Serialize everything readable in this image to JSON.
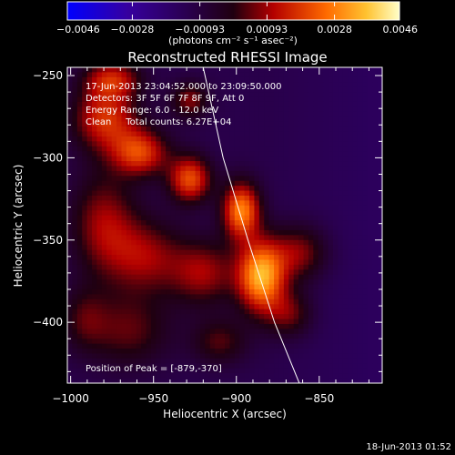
{
  "chart_data": {
    "type": "heatmap",
    "title": "Reconstructed RHESSI Image",
    "xlabel": "Heliocentric X (arcsec)",
    "ylabel": "Heliocentric Y (arcsec)",
    "xlim": [
      -1002,
      -812
    ],
    "ylim": [
      -437,
      -245
    ],
    "xticks": [
      -1000,
      -950,
      -900,
      -850
    ],
    "yticks": [
      -250,
      -300,
      -350,
      -400
    ],
    "xtick_labels": [
      "−1000",
      "−950",
      "−900",
      "−850"
    ],
    "ytick_labels": [
      "−250",
      "−300",
      "−350",
      "−400"
    ],
    "colorbar": {
      "min": -0.0046,
      "max": 0.0046,
      "ticks": [
        -0.0046,
        -0.0028,
        -0.00093,
        0.00093,
        0.0028,
        0.0046
      ],
      "tick_labels": [
        "−0.0046",
        "−0.0028",
        "−0.00093",
        "0.00093",
        "0.0028",
        "0.0046"
      ],
      "units_label": "(photons cm⁻² s⁻¹ asec⁻²)"
    },
    "annotations": {
      "time_range": "17-Jun-2013 23:04:52.000 to 23:09:50.000",
      "detectors": "Detectors: 3F 5F 6F 7F 8F 9F, Att 0",
      "energy_range": "Energy Range: 6.0 - 12.0 keV",
      "method": "Clean     Total counts: 6.27E+04",
      "peak": "Position of Peak = [-879,-370]"
    },
    "peak": [
      -879,
      -370
    ],
    "sources": [
      {
        "x": -885,
        "y": -372,
        "sigma_x": 10,
        "sigma_y": 15,
        "amp": 0.0046
      },
      {
        "x": -897,
        "y": -332,
        "sigma_x": 8,
        "sigma_y": 12,
        "amp": 0.004
      },
      {
        "x": -928,
        "y": -313,
        "sigma_x": 9,
        "sigma_y": 10,
        "amp": 0.0033
      },
      {
        "x": -958,
        "y": -297,
        "sigma_x": 12,
        "sigma_y": 10,
        "amp": 0.003
      },
      {
        "x": -979,
        "y": -276,
        "sigma_x": 14,
        "sigma_y": 14,
        "amp": 0.0029
      },
      {
        "x": -975,
        "y": -252,
        "sigma_x": 12,
        "sigma_y": 8,
        "amp": 0.0024
      },
      {
        "x": -928,
        "y": -265,
        "sigma_x": 8,
        "sigma_y": 8,
        "amp": 0.0019
      },
      {
        "x": -862,
        "y": -358,
        "sigma_x": 12,
        "sigma_y": 12,
        "amp": 0.002
      },
      {
        "x": -868,
        "y": -395,
        "sigma_x": 10,
        "sigma_y": 10,
        "amp": 0.0017
      },
      {
        "x": -920,
        "y": -370,
        "sigma_x": 14,
        "sigma_y": 14,
        "amp": 0.0021
      },
      {
        "x": -955,
        "y": -360,
        "sigma_x": 16,
        "sigma_y": 16,
        "amp": 0.002
      },
      {
        "x": -980,
        "y": -340,
        "sigma_x": 14,
        "sigma_y": 22,
        "amp": 0.0021
      },
      {
        "x": -965,
        "y": -405,
        "sigma_x": 18,
        "sigma_y": 16,
        "amp": 0.0016
      },
      {
        "x": -910,
        "y": -412,
        "sigma_x": 12,
        "sigma_y": 10,
        "amp": 0.0015
      },
      {
        "x": -992,
        "y": -398,
        "sigma_x": 10,
        "sigma_y": 14,
        "amp": 0.0012
      }
    ],
    "limb_curve": [
      [
        -920,
        -245
      ],
      [
        -908,
        -300
      ],
      [
        -893,
        -350
      ],
      [
        -877,
        -400
      ],
      [
        -862,
        -437
      ]
    ]
  },
  "footer": {
    "date": "18-Jun-2013 01:52"
  }
}
